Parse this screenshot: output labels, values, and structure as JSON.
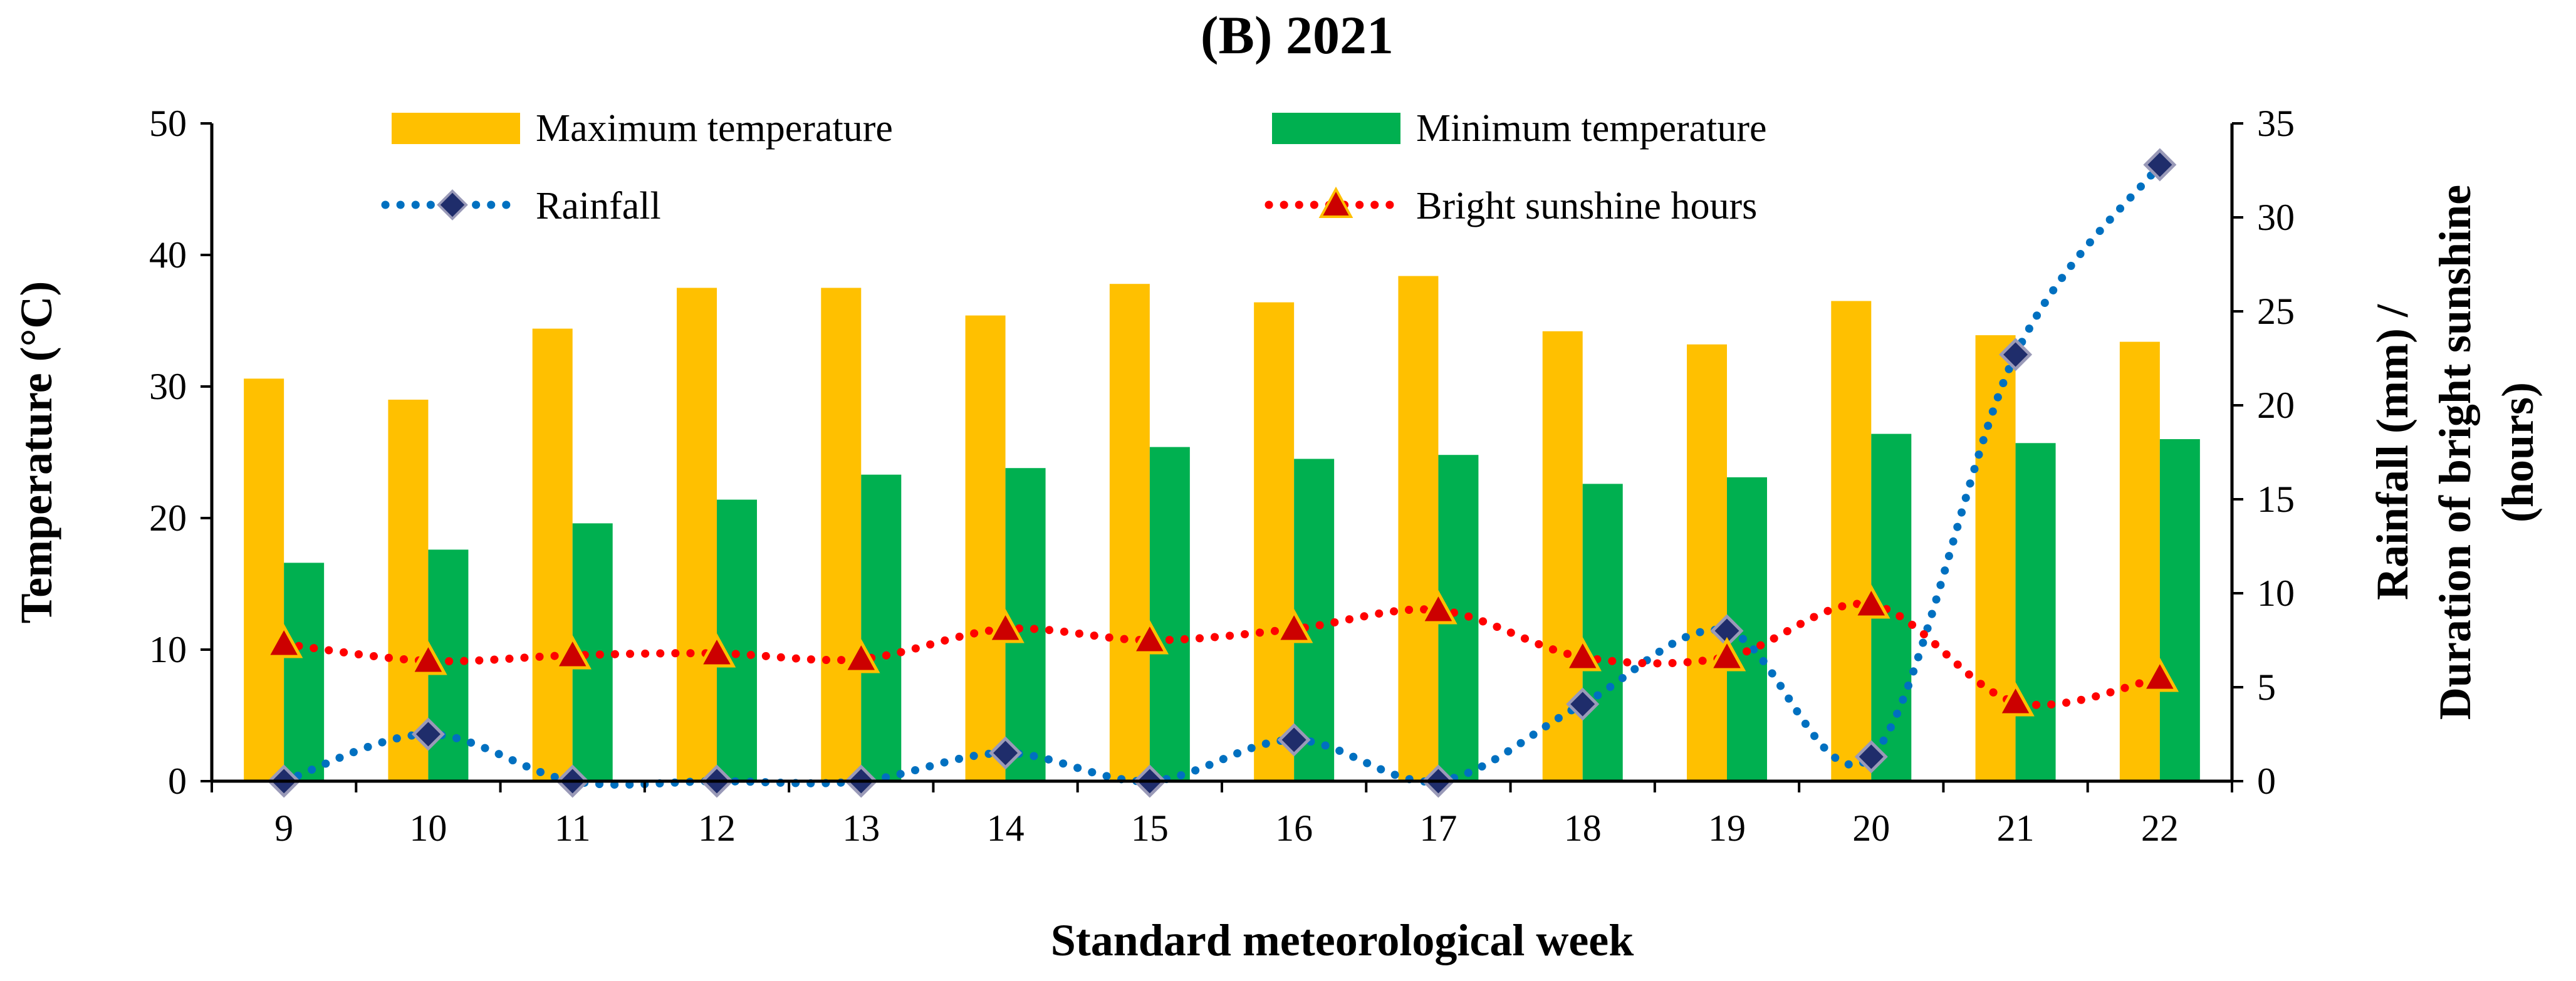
{
  "chart_data": {
    "type": "bar+line",
    "title": "(B) 2021",
    "xlabel": "Standard meteorological week",
    "ylabel_left": "Temperature (°C)",
    "ylabel_right_line1": "Rainfall (mm) /",
    "ylabel_right_line2": "Duration of bright sunshine",
    "ylabel_right_line3": "(hours)",
    "categories": [
      "9",
      "10",
      "11",
      "12",
      "13",
      "14",
      "15",
      "16",
      "17",
      "18",
      "19",
      "20",
      "21",
      "22"
    ],
    "ylim_left": [
      0,
      50
    ],
    "yticks_left": [
      0,
      10,
      20,
      30,
      40,
      50
    ],
    "ylim_right": [
      0,
      35
    ],
    "yticks_right": [
      0,
      5,
      10,
      15,
      20,
      25,
      30,
      35
    ],
    "legend_position": "top",
    "series": [
      {
        "name": "Maximum temperature",
        "kind": "bar",
        "axis": "left",
        "color": "#FFC000",
        "values": [
          30.6,
          29.0,
          34.4,
          37.5,
          37.5,
          35.4,
          37.8,
          36.4,
          38.4,
          34.2,
          33.2,
          36.5,
          33.9,
          33.4
        ]
      },
      {
        "name": "Minimum temperature",
        "kind": "bar",
        "axis": "left",
        "color": "#00B050",
        "values": [
          16.6,
          17.6,
          19.6,
          21.4,
          23.3,
          23.8,
          25.4,
          24.5,
          24.8,
          22.6,
          23.1,
          26.4,
          25.7,
          26.0
        ]
      },
      {
        "name": "Rainfall",
        "kind": "line",
        "axis": "right",
        "color": "#0070C0",
        "marker": "diamond",
        "marker_color": "#1F2D6B",
        "values": [
          0,
          2.5,
          0,
          0,
          0,
          1.5,
          0,
          2.2,
          0,
          4.1,
          8.0,
          1.3,
          22.7,
          32.8
        ]
      },
      {
        "name": "Bright sunshine hours",
        "kind": "line",
        "axis": "right",
        "color": "#FF0000",
        "marker": "triangle",
        "marker_color": "#CC0000",
        "values": [
          7.3,
          6.4,
          6.7,
          6.8,
          6.5,
          8.1,
          7.5,
          8.1,
          9.1,
          6.6,
          6.6,
          9.4,
          4.2,
          5.5
        ]
      }
    ]
  }
}
